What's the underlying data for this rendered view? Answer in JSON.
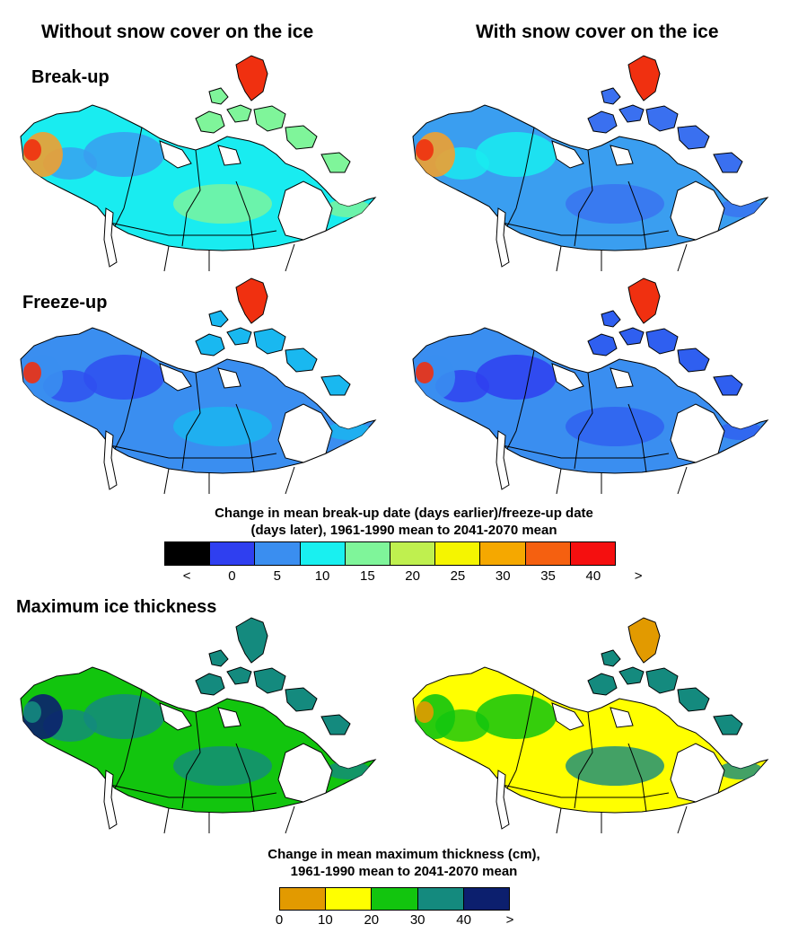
{
  "columns": {
    "left": "Without snow cover on the ice",
    "right": "With snow cover on the ice"
  },
  "rows": {
    "breakup": "Break-up",
    "freezeup": "Freeze-up",
    "thickness": "Maximum ice thickness"
  },
  "legend_days": {
    "title_line1": "Change in mean break-up date (days earlier)/freeze-up date",
    "title_line2": "(days later), 1961-1990 mean to 2041-2070 mean",
    "ticks": [
      "<",
      "0",
      "5",
      "10",
      "15",
      "20",
      "25",
      "30",
      "35",
      "40",
      ">"
    ],
    "colors": [
      "#000000",
      "#2f3ff0",
      "#3a8ef0",
      "#19f0f0",
      "#7ff59a",
      "#bff04f",
      "#f5f500",
      "#f5a800",
      "#f56010",
      "#f50f0f"
    ]
  },
  "legend_thickness": {
    "title_line1": "Change in mean maximum thickness (cm),",
    "title_line2": "1961-1990 mean to 2041-2070 mean",
    "ticks": [
      "0",
      "10",
      "20",
      "30",
      "40",
      ">"
    ],
    "colors": [
      "#e29a00",
      "#ffff00",
      "#12c50e",
      "#148a7e",
      "#0c1f6e"
    ]
  },
  "map_colors": {
    "breakup_left": {
      "base": "#19ecf0",
      "patch1": "#3a9ef0",
      "patch2": "#7ff59a",
      "hot": "#f0a030",
      "hot2": "#f03010"
    },
    "breakup_right": {
      "base": "#3a9ef0",
      "patch1": "#19ecf0",
      "patch2": "#3a70f0",
      "hot": "#f0a030",
      "hot2": "#f03010"
    },
    "freezeup_left": {
      "base": "#3a8ef0",
      "patch1": "#2f4ff0",
      "patch2": "#19b8f0",
      "hot": "#3a8ef0",
      "hot2": "#f03010"
    },
    "freezeup_right": {
      "base": "#3a8ef0",
      "patch1": "#2f3ff0",
      "patch2": "#2f5ff0",
      "hot": "#3a8ef0",
      "hot2": "#f03010"
    },
    "thick_left": {
      "base": "#12c50e",
      "patch1": "#148a7e",
      "patch2": "#148a7e",
      "hot": "#0c1f6e",
      "hot2": "#148a7e"
    },
    "thick_right": {
      "base": "#ffff00",
      "patch1": "#12c50e",
      "patch2": "#148a7e",
      "hot": "#12c50e",
      "hot2": "#e29a00"
    }
  }
}
